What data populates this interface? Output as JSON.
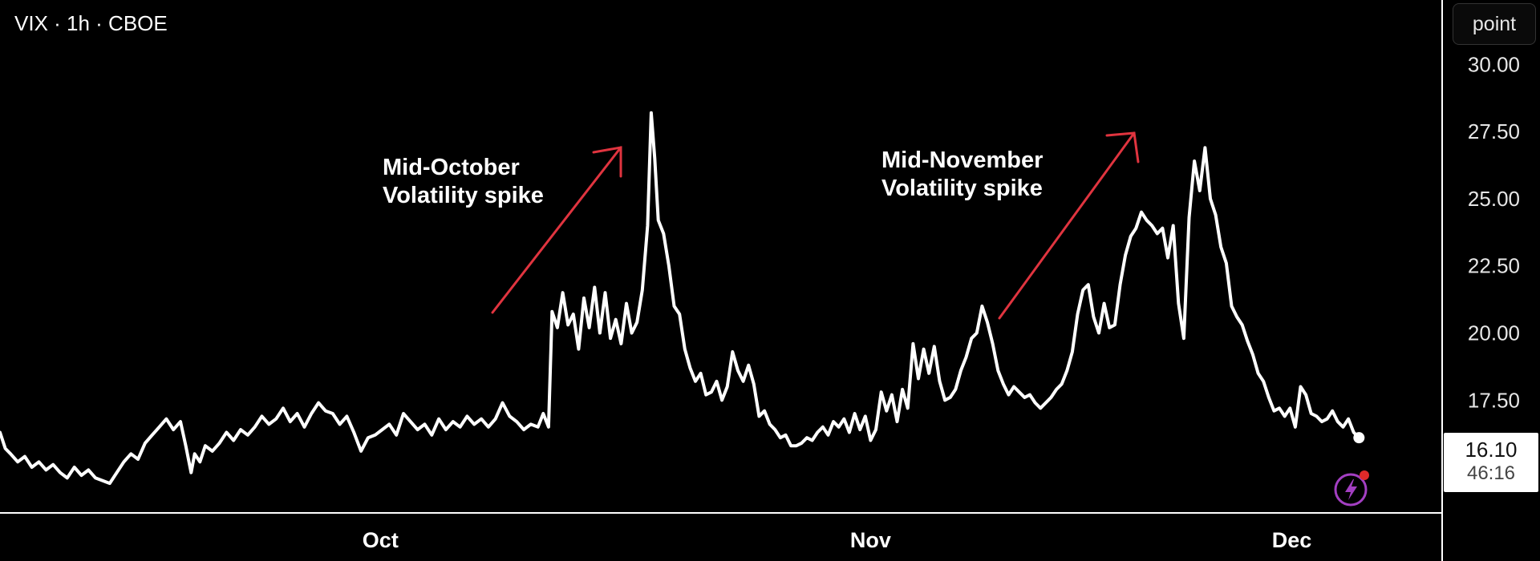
{
  "header": {
    "symbol": "VIX · 1h · CBOE"
  },
  "scale_button": {
    "label": "point"
  },
  "last_price": {
    "value": "16.10",
    "countdown": "46:16"
  },
  "colors": {
    "background": "#000000",
    "line": "#ffffff",
    "arrow": "#e0343f",
    "bolt": "#a33fc2",
    "badge": "#e02a2a"
  },
  "icons": {
    "bolt": "lightning-bolt-icon"
  },
  "annotations": [
    {
      "lines": [
        "Mid-October",
        "Volatility spike"
      ]
    },
    {
      "lines": [
        "Mid-November",
        "Volatility spike"
      ]
    }
  ],
  "chart_data": {
    "type": "line",
    "series": [
      {
        "values": [
          [
            0,
            16.3
          ],
          [
            0.3,
            15.7
          ],
          [
            0.6,
            15.5
          ],
          [
            1.0,
            15.2
          ],
          [
            1.4,
            15.4
          ],
          [
            1.8,
            15.0
          ],
          [
            2.2,
            15.2
          ],
          [
            2.6,
            14.9
          ],
          [
            3.0,
            15.1
          ],
          [
            3.4,
            14.8
          ],
          [
            3.8,
            14.6
          ],
          [
            4.2,
            15.0
          ],
          [
            4.6,
            14.7
          ],
          [
            5.0,
            14.9
          ],
          [
            5.4,
            14.6
          ],
          [
            5.8,
            14.5
          ],
          [
            6.2,
            14.4
          ],
          [
            6.6,
            14.8
          ],
          [
            7.0,
            15.2
          ],
          [
            7.4,
            15.5
          ],
          [
            7.8,
            15.3
          ],
          [
            8.2,
            15.9
          ],
          [
            8.6,
            16.2
          ],
          [
            9.0,
            16.5
          ],
          [
            9.4,
            16.8
          ],
          [
            9.8,
            16.4
          ],
          [
            10.2,
            16.7
          ],
          [
            10.5,
            15.8
          ],
          [
            10.8,
            14.8
          ],
          [
            11.0,
            15.5
          ],
          [
            11.3,
            15.2
          ],
          [
            11.6,
            15.8
          ],
          [
            12.0,
            15.6
          ],
          [
            12.4,
            15.9
          ],
          [
            12.8,
            16.3
          ],
          [
            13.2,
            16.0
          ],
          [
            13.6,
            16.4
          ],
          [
            14.0,
            16.2
          ],
          [
            14.4,
            16.5
          ],
          [
            14.8,
            16.9
          ],
          [
            15.2,
            16.6
          ],
          [
            15.6,
            16.8
          ],
          [
            16.0,
            17.2
          ],
          [
            16.4,
            16.7
          ],
          [
            16.8,
            17.0
          ],
          [
            17.2,
            16.5
          ],
          [
            17.6,
            17.0
          ],
          [
            18.0,
            17.4
          ],
          [
            18.4,
            17.1
          ],
          [
            18.8,
            17.0
          ],
          [
            19.2,
            16.6
          ],
          [
            19.6,
            16.9
          ],
          [
            20.0,
            16.3
          ],
          [
            20.4,
            15.6
          ],
          [
            20.8,
            16.1
          ],
          [
            21.2,
            16.2
          ],
          [
            21.6,
            16.4
          ],
          [
            22.0,
            16.6
          ],
          [
            22.4,
            16.2
          ],
          [
            22.8,
            17.0
          ],
          [
            23.2,
            16.7
          ],
          [
            23.6,
            16.4
          ],
          [
            24.0,
            16.6
          ],
          [
            24.4,
            16.2
          ],
          [
            24.8,
            16.8
          ],
          [
            25.2,
            16.4
          ],
          [
            25.6,
            16.7
          ],
          [
            26.0,
            16.5
          ],
          [
            26.4,
            16.9
          ],
          [
            26.8,
            16.6
          ],
          [
            27.2,
            16.8
          ],
          [
            27.6,
            16.5
          ],
          [
            28.0,
            16.8
          ],
          [
            28.4,
            17.4
          ],
          [
            28.8,
            16.9
          ],
          [
            29.2,
            16.7
          ],
          [
            29.6,
            16.4
          ],
          [
            30.0,
            16.6
          ],
          [
            30.4,
            16.5
          ],
          [
            30.7,
            17.0
          ],
          [
            31.0,
            16.5
          ],
          [
            31.2,
            20.8
          ],
          [
            31.5,
            20.2
          ],
          [
            31.8,
            21.5
          ],
          [
            32.1,
            20.3
          ],
          [
            32.4,
            20.7
          ],
          [
            32.7,
            19.4
          ],
          [
            33.0,
            21.3
          ],
          [
            33.3,
            20.2
          ],
          [
            33.6,
            21.7
          ],
          [
            33.9,
            20.0
          ],
          [
            34.2,
            21.5
          ],
          [
            34.5,
            19.8
          ],
          [
            34.8,
            20.5
          ],
          [
            35.1,
            19.6
          ],
          [
            35.4,
            21.1
          ],
          [
            35.7,
            20.0
          ],
          [
            36.0,
            20.4
          ],
          [
            36.3,
            21.6
          ],
          [
            36.6,
            24.0
          ],
          [
            36.8,
            28.2
          ],
          [
            37.0,
            26.5
          ],
          [
            37.2,
            24.2
          ],
          [
            37.5,
            23.7
          ],
          [
            37.8,
            22.5
          ],
          [
            38.1,
            21.0
          ],
          [
            38.4,
            20.7
          ],
          [
            38.7,
            19.4
          ],
          [
            39.0,
            18.7
          ],
          [
            39.3,
            18.2
          ],
          [
            39.6,
            18.5
          ],
          [
            39.9,
            17.7
          ],
          [
            40.2,
            17.8
          ],
          [
            40.5,
            18.2
          ],
          [
            40.8,
            17.5
          ],
          [
            41.1,
            18.0
          ],
          [
            41.4,
            19.3
          ],
          [
            41.7,
            18.6
          ],
          [
            42.0,
            18.2
          ],
          [
            42.3,
            18.8
          ],
          [
            42.6,
            18.1
          ],
          [
            42.9,
            16.9
          ],
          [
            43.2,
            17.1
          ],
          [
            43.5,
            16.6
          ],
          [
            43.8,
            16.4
          ],
          [
            44.1,
            16.1
          ],
          [
            44.4,
            16.2
          ],
          [
            44.7,
            15.8
          ],
          [
            45.0,
            15.8
          ],
          [
            45.3,
            15.9
          ],
          [
            45.6,
            16.1
          ],
          [
            45.9,
            16.0
          ],
          [
            46.2,
            16.3
          ],
          [
            46.5,
            16.5
          ],
          [
            46.8,
            16.2
          ],
          [
            47.1,
            16.7
          ],
          [
            47.4,
            16.5
          ],
          [
            47.7,
            16.8
          ],
          [
            48.0,
            16.3
          ],
          [
            48.3,
            17.0
          ],
          [
            48.6,
            16.4
          ],
          [
            48.9,
            16.9
          ],
          [
            49.2,
            16.0
          ],
          [
            49.5,
            16.4
          ],
          [
            49.8,
            17.8
          ],
          [
            50.1,
            17.1
          ],
          [
            50.4,
            17.7
          ],
          [
            50.7,
            16.7
          ],
          [
            51.0,
            17.9
          ],
          [
            51.3,
            17.2
          ],
          [
            51.6,
            19.6
          ],
          [
            51.9,
            18.3
          ],
          [
            52.2,
            19.4
          ],
          [
            52.5,
            18.5
          ],
          [
            52.8,
            19.5
          ],
          [
            53.1,
            18.2
          ],
          [
            53.4,
            17.5
          ],
          [
            53.7,
            17.6
          ],
          [
            54.0,
            17.9
          ],
          [
            54.3,
            18.6
          ],
          [
            54.6,
            19.1
          ],
          [
            54.9,
            19.8
          ],
          [
            55.2,
            20.0
          ],
          [
            55.5,
            21.0
          ],
          [
            55.8,
            20.4
          ],
          [
            56.1,
            19.6
          ],
          [
            56.4,
            18.6
          ],
          [
            56.7,
            18.1
          ],
          [
            57.0,
            17.7
          ],
          [
            57.3,
            18.0
          ],
          [
            57.6,
            17.8
          ],
          [
            57.9,
            17.6
          ],
          [
            58.2,
            17.7
          ],
          [
            58.5,
            17.4
          ],
          [
            58.8,
            17.2
          ],
          [
            59.1,
            17.4
          ],
          [
            59.4,
            17.6
          ],
          [
            59.7,
            17.9
          ],
          [
            60.0,
            18.1
          ],
          [
            60.3,
            18.6
          ],
          [
            60.6,
            19.3
          ],
          [
            60.9,
            20.7
          ],
          [
            61.2,
            21.6
          ],
          [
            61.5,
            21.8
          ],
          [
            61.8,
            20.6
          ],
          [
            62.1,
            20.0
          ],
          [
            62.4,
            21.1
          ],
          [
            62.7,
            20.2
          ],
          [
            63.0,
            20.3
          ],
          [
            63.3,
            21.8
          ],
          [
            63.6,
            22.9
          ],
          [
            63.9,
            23.6
          ],
          [
            64.2,
            23.9
          ],
          [
            64.5,
            24.5
          ],
          [
            64.8,
            24.2
          ],
          [
            65.1,
            24.0
          ],
          [
            65.4,
            23.7
          ],
          [
            65.7,
            23.9
          ],
          [
            66.0,
            22.8
          ],
          [
            66.3,
            24.0
          ],
          [
            66.6,
            21.1
          ],
          [
            66.9,
            19.8
          ],
          [
            67.2,
            24.3
          ],
          [
            67.5,
            26.4
          ],
          [
            67.8,
            25.3
          ],
          [
            68.1,
            26.9
          ],
          [
            68.4,
            25.0
          ],
          [
            68.7,
            24.4
          ],
          [
            69.0,
            23.2
          ],
          [
            69.3,
            22.6
          ],
          [
            69.6,
            21.0
          ],
          [
            69.9,
            20.6
          ],
          [
            70.2,
            20.3
          ],
          [
            70.5,
            19.7
          ],
          [
            70.8,
            19.2
          ],
          [
            71.1,
            18.5
          ],
          [
            71.4,
            18.2
          ],
          [
            71.7,
            17.6
          ],
          [
            72.0,
            17.1
          ],
          [
            72.3,
            17.2
          ],
          [
            72.6,
            16.9
          ],
          [
            72.9,
            17.2
          ],
          [
            73.2,
            16.5
          ],
          [
            73.5,
            18.0
          ],
          [
            73.8,
            17.7
          ],
          [
            74.1,
            17.0
          ],
          [
            74.4,
            16.9
          ],
          [
            74.7,
            16.7
          ],
          [
            75.0,
            16.8
          ],
          [
            75.3,
            17.1
          ],
          [
            75.6,
            16.7
          ],
          [
            75.9,
            16.5
          ],
          [
            76.2,
            16.8
          ],
          [
            76.5,
            16.3
          ],
          [
            76.8,
            16.1
          ]
        ]
      }
    ],
    "x_tick_labels": [
      "Oct",
      "Nov",
      "Dec"
    ],
    "x_tick_positions": [
      21.5,
      49.2,
      73.0
    ],
    "xlim": [
      0,
      81.5
    ],
    "y_ticks": [
      17.5,
      20.0,
      22.5,
      25.0,
      27.5,
      30.0
    ],
    "y_tick_labels": [
      "17.50",
      "20.00",
      "22.50",
      "25.00",
      "27.50",
      "30.00"
    ],
    "ylim": [
      13.3,
      32.4
    ],
    "last_value": 16.1,
    "grid": false
  }
}
